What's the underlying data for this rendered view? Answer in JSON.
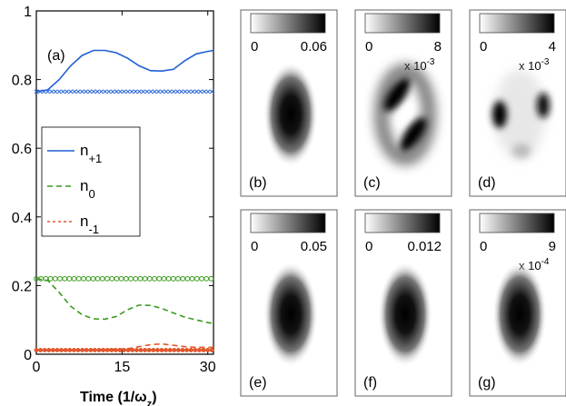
{
  "chart_data": [
    {
      "type": "line",
      "panel_label": "(a)",
      "xlabel": "Time (1/ω",
      "xlabel_sub": "z",
      "xlabel_close": ")",
      "xlim": [
        0,
        31
      ],
      "ylim": [
        0,
        1
      ],
      "xticks": [
        "0",
        "15",
        "30"
      ],
      "xtick_values": [
        0,
        15,
        30
      ],
      "yticks": [
        "0",
        "0.2",
        "0.4",
        "0.6",
        "0.8",
        "1"
      ],
      "ytick_values": [
        0,
        0.2,
        0.4,
        0.6,
        0.8,
        1
      ],
      "legend": [
        {
          "base": "n",
          "sub": "+1",
          "color": "#1f5fd6",
          "dash": ""
        },
        {
          "base": "n",
          "sub": "0",
          "color": "#3a9a1e",
          "dash": "6,4"
        },
        {
          "base": "n",
          "sub": "-1",
          "color": "#e8572a",
          "dash": "3,3"
        }
      ],
      "series": [
        {
          "color": "#1f5fd6",
          "style": "solid",
          "x": [
            0,
            2,
            4,
            6,
            8,
            10,
            12,
            14,
            16,
            18,
            20,
            22,
            24,
            26,
            28,
            30,
            31
          ],
          "y": [
            0.765,
            0.77,
            0.8,
            0.84,
            0.87,
            0.885,
            0.885,
            0.878,
            0.862,
            0.84,
            0.826,
            0.825,
            0.83,
            0.855,
            0.875,
            0.882,
            0.885
          ]
        },
        {
          "color": "#1f5fd6",
          "style": "x-markers",
          "x": [
            0,
            31
          ],
          "y": [
            0.765,
            0.765
          ]
        },
        {
          "color": "#3a9a1e",
          "style": "dashed",
          "x": [
            0,
            2,
            4,
            6,
            8,
            10,
            12,
            14,
            16,
            18,
            20,
            22,
            24,
            26,
            28,
            30,
            31
          ],
          "y": [
            0.22,
            0.215,
            0.18,
            0.14,
            0.115,
            0.103,
            0.102,
            0.11,
            0.13,
            0.143,
            0.142,
            0.133,
            0.12,
            0.108,
            0.1,
            0.092,
            0.09
          ]
        },
        {
          "color": "#3a9a1e",
          "style": "o-markers",
          "x": [
            0,
            31
          ],
          "y": [
            0.22,
            0.22
          ]
        },
        {
          "color": "#e8572a",
          "style": "dashed",
          "x": [
            0,
            4,
            8,
            12,
            16,
            18,
            20,
            22,
            24,
            26,
            28,
            31
          ],
          "y": [
            0.012,
            0.012,
            0.013,
            0.014,
            0.016,
            0.022,
            0.028,
            0.03,
            0.026,
            0.022,
            0.02,
            0.02
          ]
        },
        {
          "color": "#e8572a",
          "style": "dot-markers",
          "x": [
            0,
            31
          ],
          "y": [
            0.012,
            0.012
          ]
        }
      ]
    },
    {
      "type": "heatmap",
      "panels": [
        {
          "label": "(b)",
          "cmin": "0",
          "cmax": "0.06",
          "multiplier": "",
          "exponent": "",
          "pattern": "single"
        },
        {
          "label": "(c)",
          "cmin": "0",
          "cmax": "8",
          "multiplier": "x 10",
          "exponent": "-3",
          "pattern": "diagonal-pair"
        },
        {
          "label": "(d)",
          "cmin": "0",
          "cmax": "4",
          "multiplier": "x 10",
          "exponent": "-3",
          "pattern": "side-spots"
        },
        {
          "label": "(e)",
          "cmin": "0",
          "cmax": "0.05",
          "multiplier": "",
          "exponent": "",
          "pattern": "single"
        },
        {
          "label": "(f)",
          "cmin": "0",
          "cmax": "0.012",
          "multiplier": "",
          "exponent": "",
          "pattern": "single"
        },
        {
          "label": "(g)",
          "cmin": "0",
          "cmax": "9",
          "multiplier": "x 10",
          "exponent": "-4",
          "pattern": "single"
        }
      ]
    }
  ]
}
